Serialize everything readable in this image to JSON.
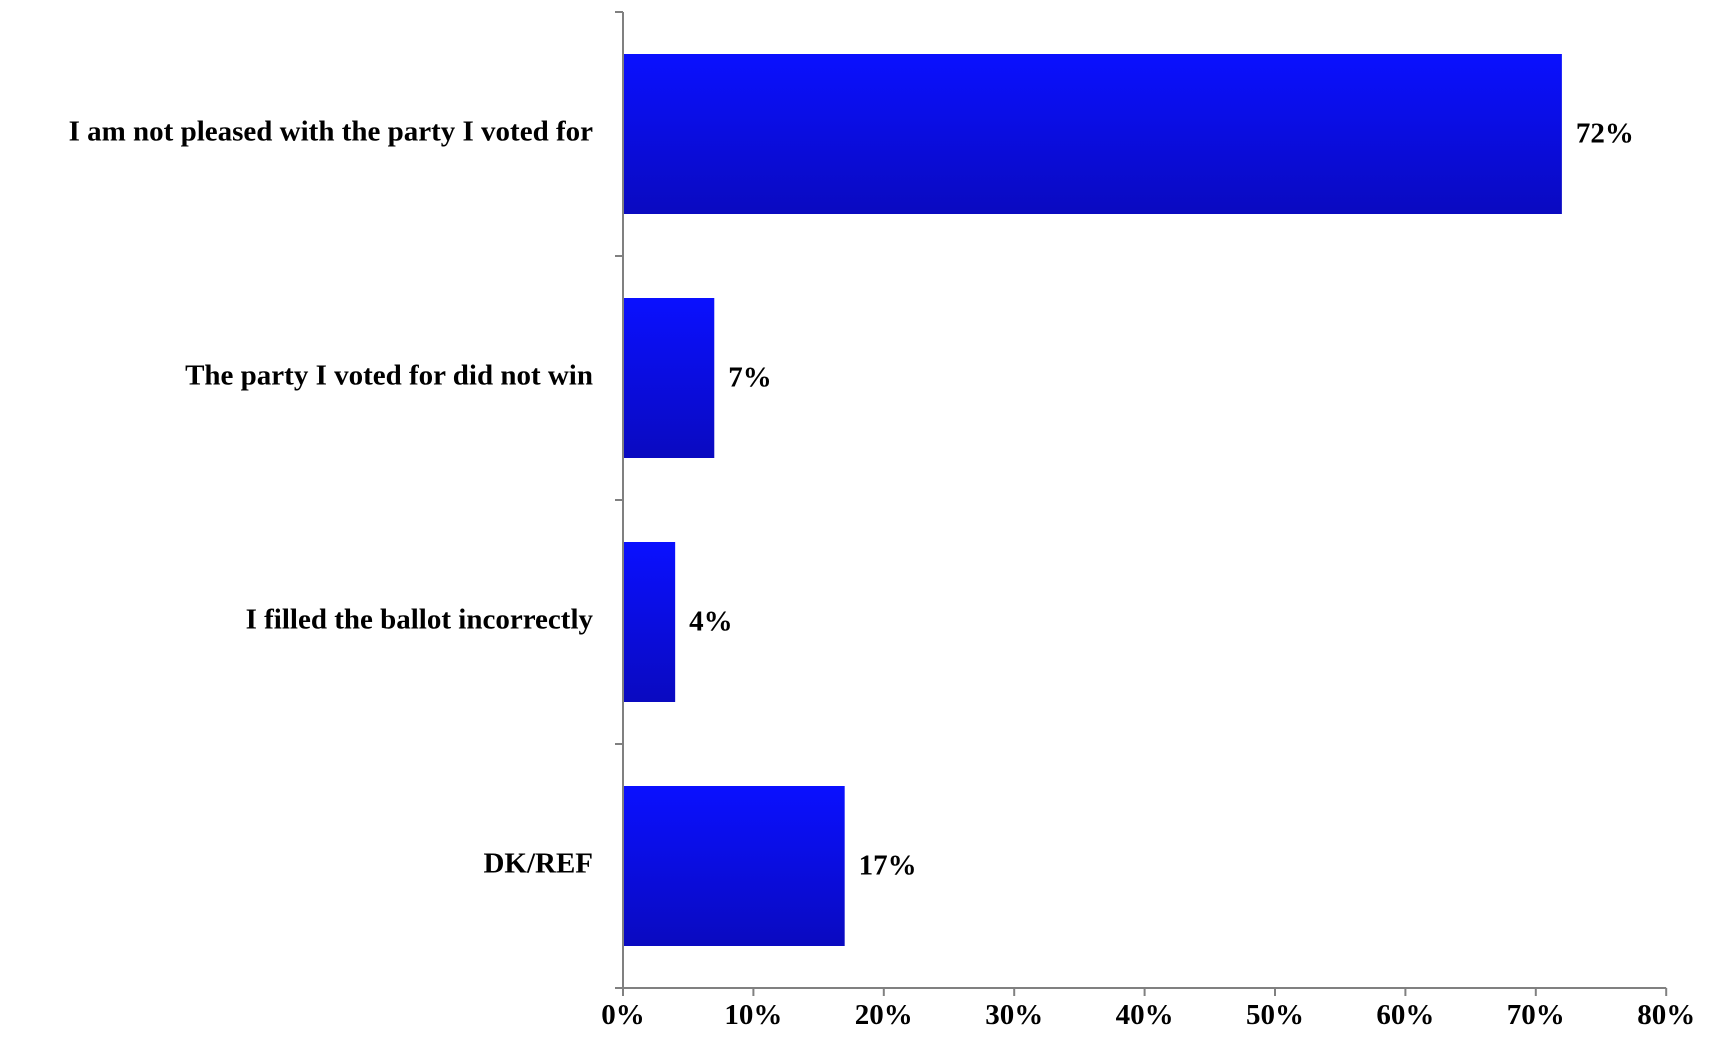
{
  "chart_data": {
    "type": "bar",
    "orientation": "horizontal",
    "categories": [
      "I am not pleased with the party I voted for",
      "The party I voted for did not win",
      "I filled the ballot incorrectly",
      "DK/REF"
    ],
    "values": [
      72,
      7,
      4,
      17
    ],
    "value_labels": [
      "72%",
      "7%",
      "4%",
      "17%"
    ],
    "xlim": [
      0,
      80
    ],
    "xticks": [
      0,
      10,
      20,
      30,
      40,
      50,
      60,
      70,
      80
    ],
    "xtick_labels": [
      "0%",
      "10%",
      "20%",
      "30%",
      "40%",
      "50%",
      "60%",
      "70%",
      "80%"
    ],
    "grid": false,
    "legend": "none",
    "title": "",
    "xlabel": "",
    "ylabel": "",
    "colors": {
      "bar_top": "#0a10ff",
      "bar_bottom": "#0a0ac0",
      "axis": "#808080",
      "text": "#000000"
    }
  }
}
